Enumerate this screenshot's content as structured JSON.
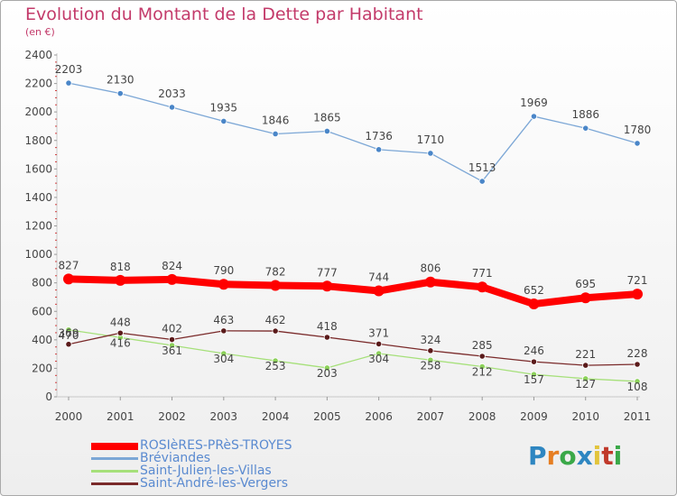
{
  "header": {
    "title": "Evolution du Montant de la Dette par Habitant",
    "unit": "(en €)"
  },
  "logo": {
    "text": "Proxiti",
    "colors": [
      "#2e86c1",
      "#e67e22",
      "#3aa848",
      "#2e86c1",
      "#e2c43c",
      "#c0392b",
      "#3aa848"
    ]
  },
  "chart_data": {
    "type": "line",
    "title": "Evolution du Montant de la Dette par Habitant",
    "subtitle": "(en €)",
    "xlabel": "",
    "ylabel": "",
    "x": [
      "2000",
      "2001",
      "2002",
      "2003",
      "2004",
      "2005",
      "2006",
      "2007",
      "2008",
      "2009",
      "2010",
      "2011"
    ],
    "ylim": [
      0,
      2400
    ],
    "yticks": [
      0,
      200,
      400,
      600,
      800,
      1000,
      1200,
      1400,
      1600,
      1800,
      2000,
      2200,
      2400
    ],
    "grid": false,
    "legend_position": "bottom-left",
    "series": [
      {
        "name": "ROSIèRES-PRèS-TROYES",
        "color": "#ff0000",
        "width": 8,
        "values": [
          827,
          818,
          824,
          790,
          782,
          777,
          744,
          806,
          771,
          652,
          695,
          721
        ],
        "labels": [
          "827",
          "818",
          "824",
          "790",
          "782",
          "777",
          "744",
          "806",
          "771",
          "652",
          "695",
          "721"
        ]
      },
      {
        "name": "Bréviandes",
        "color": "#7ca7d6",
        "width": 1.3,
        "values": [
          2203,
          2130,
          2033,
          1935,
          1846,
          1865,
          1736,
          1710,
          1513,
          1969,
          1886,
          1780
        ],
        "labels": [
          "2203",
          "2130",
          "2033",
          "1935",
          "1846",
          "1865",
          "1736",
          "1710",
          "1513",
          "1969",
          "1886",
          "1780"
        ]
      },
      {
        "name": "Saint-Julien-les-Villas",
        "color": "#a6e07a",
        "width": 1.3,
        "values": [
          470,
          416,
          361,
          304,
          253,
          203,
          304,
          258,
          212,
          157,
          127,
          108
        ],
        "labels": [
          "470",
          "416",
          "361",
          "304",
          "253",
          "203",
          "304",
          "258",
          "212",
          "157",
          "127",
          "108"
        ]
      },
      {
        "name": "Saint-André-les-Vergers",
        "color": "#7a2a2a",
        "width": 1.3,
        "values": [
          369,
          448,
          402,
          463,
          462,
          418,
          371,
          324,
          285,
          246,
          221,
          228
        ],
        "labels": [
          "369",
          "448",
          "402",
          "463",
          "462",
          "418",
          "371",
          "324",
          "285",
          "246",
          "221",
          "228"
        ]
      }
    ]
  }
}
